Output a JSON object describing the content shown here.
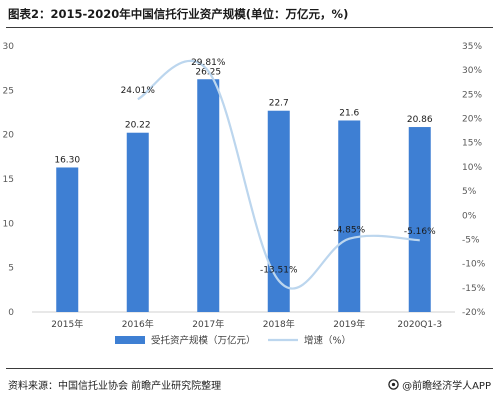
{
  "title": "图表2：2015-2020年中国信托行业资产规模(单位：万亿元，%)",
  "source": "资料来源：中国信托业协会 前瞻产业研究院整理",
  "brand": "@前瞻经济学人APP",
  "colors": {
    "bar": "#3e7fd3",
    "line": "#bcd6ee",
    "axis": "#d0d0d0"
  },
  "chart_data": {
    "type": "bar",
    "categories": [
      "2015年",
      "2016年",
      "2017年",
      "2018年",
      "2019年",
      "2020Q1-3"
    ],
    "series": [
      {
        "name": "受托资产规模（万亿元）",
        "type": "bar",
        "axis": "left",
        "values": [
          16.3,
          20.22,
          26.25,
          22.7,
          21.6,
          20.86
        ],
        "labels": [
          "16.30",
          "20.22",
          "26.25",
          "22.7",
          "21.6",
          "20.86"
        ]
      },
      {
        "name": "增速（%）",
        "type": "line",
        "axis": "right",
        "values": [
          null,
          24.01,
          29.81,
          -13.51,
          -4.85,
          -5.16
        ],
        "labels": [
          "",
          "24.01%",
          "29.81%",
          "-13.51%",
          "-4.85%",
          "-5.16%"
        ]
      }
    ],
    "y_left": {
      "min": 0,
      "max": 30,
      "ticks": [
        "0",
        "5",
        "10",
        "15",
        "20",
        "25",
        "30"
      ]
    },
    "y_right": {
      "min": -20,
      "max": 35,
      "ticks": [
        "-20%",
        "-15%",
        "-10%",
        "-5%",
        "0%",
        "5%",
        "10%",
        "15%",
        "20%",
        "25%",
        "30%",
        "35%"
      ]
    },
    "grid": false,
    "legend": "bottom"
  }
}
